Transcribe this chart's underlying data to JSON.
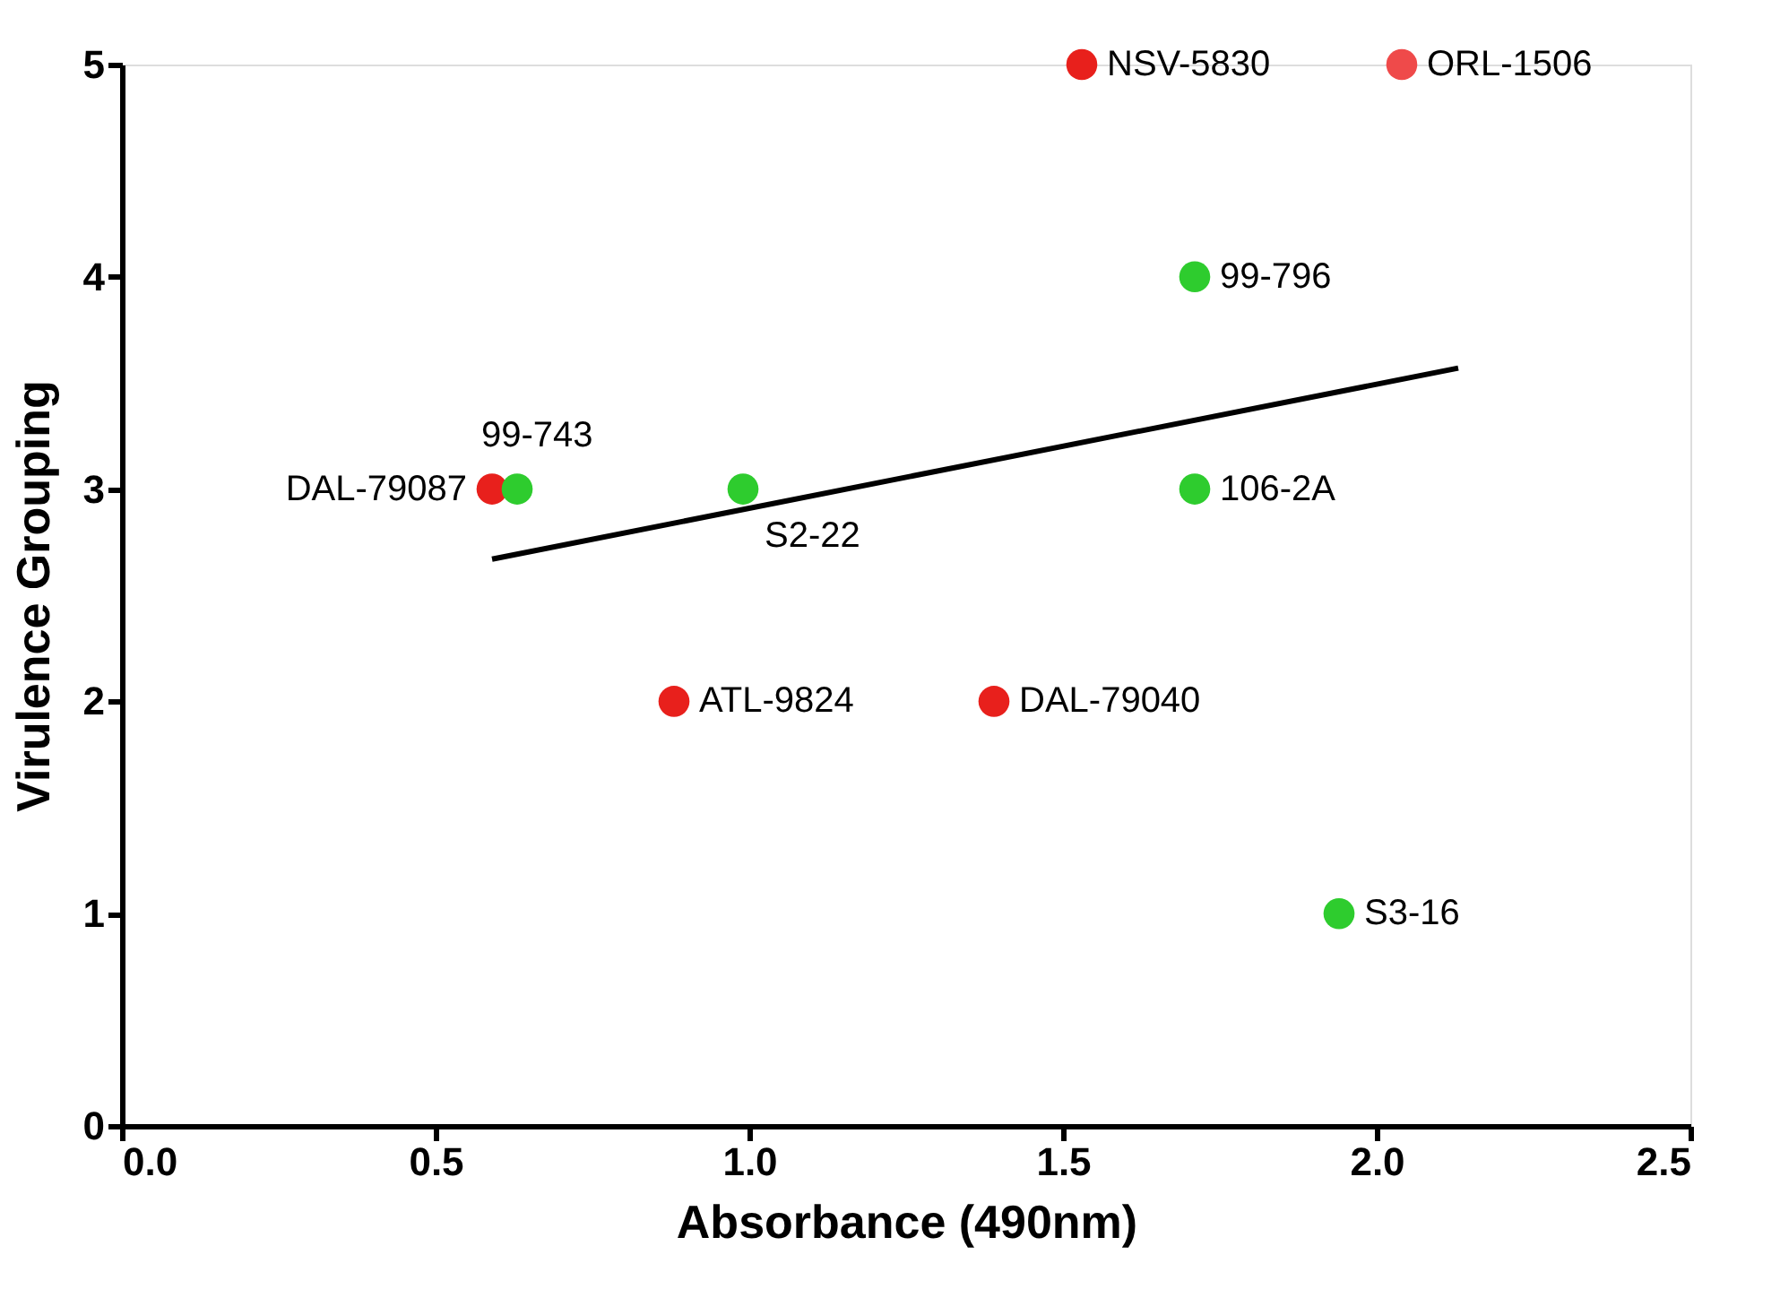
{
  "chart_data": {
    "type": "scatter",
    "xlabel": "Absorbance (490nm)",
    "ylabel": "Virulence Grouping",
    "xlim": [
      0,
      2.5
    ],
    "xticks": [
      {
        "value": 0,
        "label": "0.0"
      },
      {
        "value": 0.5,
        "label": "0.5"
      },
      {
        "value": 1,
        "label": "1.0"
      },
      {
        "value": 1.5,
        "label": "1.5"
      },
      {
        "value": 2,
        "label": "2.0"
      },
      {
        "value": 2.5,
        "label": "2.5"
      }
    ],
    "ylim": [
      0,
      5
    ],
    "yticks": [
      0,
      1,
      2,
      3,
      4,
      5
    ],
    "grid": false,
    "series": [
      {
        "marker": "circle",
        "x": [
          1.53,
          2.04,
          1.71,
          1.71,
          1.94,
          0.59,
          0.63,
          0.99,
          0.88,
          1.39
        ],
        "values": [
          5,
          5,
          4,
          3,
          1,
          3,
          3,
          3,
          2,
          2
        ],
        "colors": [
          "#e8201c",
          "#ef4a4a",
          "#2ecc2e",
          "#2ecc2e",
          "#2ecc2e",
          "#e8201c",
          "#2ecc2e",
          "#2ecc2e",
          "#e8201c",
          "#e8201c"
        ]
      },
      {
        "type": "line",
        "x": [
          0.59,
          2.13
        ],
        "values": [
          2.67,
          3.57
        ],
        "color": "#000000"
      }
    ],
    "annotations": [
      {
        "text": "NSV-5830",
        "x": 1.53,
        "y": 5
      },
      {
        "text": "ORL-1506",
        "x": 2.04,
        "y": 5
      },
      {
        "text": "99-796",
        "x": 1.71,
        "y": 4
      },
      {
        "text": "106-2A",
        "x": 1.71,
        "y": 3
      },
      {
        "text": "S3-16",
        "x": 1.94,
        "y": 1
      },
      {
        "text": "DAL-79087",
        "x": 0.59,
        "y": 3
      },
      {
        "text": "99-743",
        "x": 0.63,
        "y": 3
      },
      {
        "text": "S2-22",
        "x": 0.99,
        "y": 3
      },
      {
        "text": "ATL-9824",
        "x": 0.88,
        "y": 2
      },
      {
        "text": "DAL-79040",
        "x": 1.39,
        "y": 2
      }
    ]
  }
}
